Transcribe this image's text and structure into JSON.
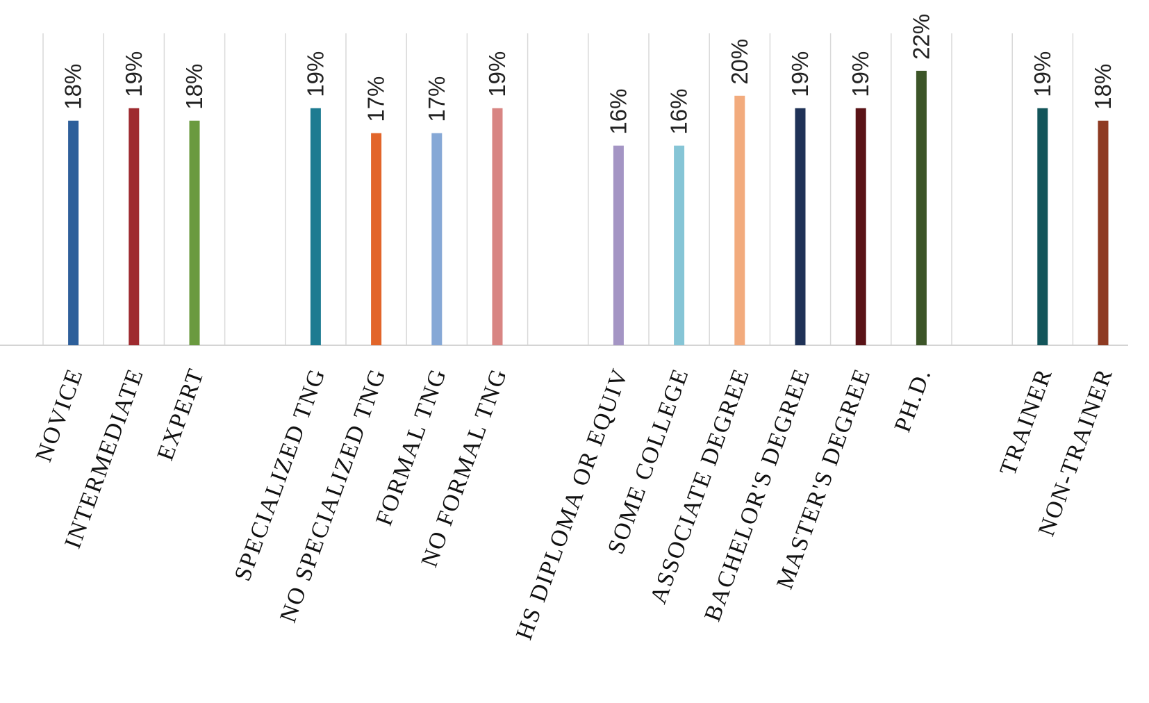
{
  "chart_data": {
    "type": "bar",
    "title": "",
    "xlabel": "",
    "ylabel": "",
    "ylim": [
      0,
      0.25
    ],
    "grid": true,
    "legend": "none",
    "categories": [
      "NOVICE",
      "INTERMEDIATE",
      "EXPERT",
      "",
      "SPECIALIZED TNG",
      "NO SPECIALIZED TNG",
      "FORMAL TNG",
      "NO FORMAL TNG",
      "",
      "HS DIPLOMA OR EQUIV",
      "SOME COLLEGE",
      "ASSOCIATE DEGREE",
      "BACHELOR'S DEGREE",
      "MASTER'S DEGREE",
      "PH.D.",
      "",
      "TRAINER",
      "NON-TRAINER"
    ],
    "values": [
      0.18,
      0.19,
      0.18,
      null,
      0.19,
      0.17,
      0.17,
      0.19,
      null,
      0.16,
      0.16,
      0.2,
      0.19,
      0.19,
      0.22,
      null,
      0.19,
      0.18
    ],
    "data_labels": [
      "18%",
      "19%",
      "18%",
      "",
      "19%",
      "17%",
      "17%",
      "19%",
      "",
      "16%",
      "16%",
      "20%",
      "19%",
      "19%",
      "22%",
      "",
      "19%",
      "18%"
    ],
    "colors": [
      "#2d5f9a",
      "#9e2a2f",
      "#6a9a3f",
      "",
      "#1d7b91",
      "#e2652a",
      "#86a8d6",
      "#d88583",
      "",
      "#a495c4",
      "#86c5d6",
      "#f2ab7d",
      "#1f3257",
      "#5a1317",
      "#3c5528",
      "",
      "#13555a",
      "#8e3a22"
    ]
  }
}
